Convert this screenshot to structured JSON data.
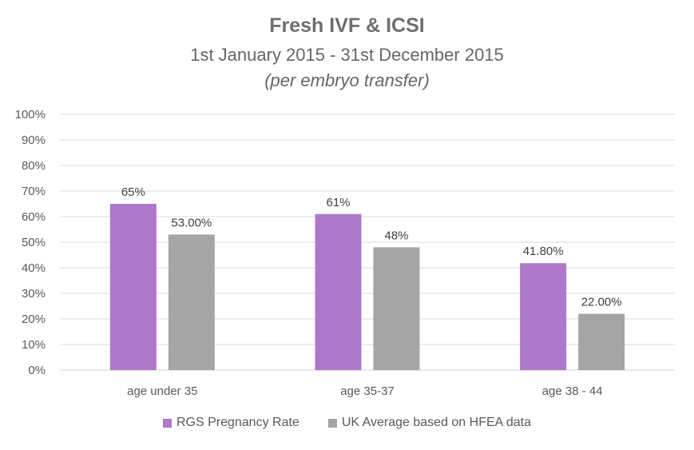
{
  "chart_data": {
    "type": "bar",
    "title": "Fresh IVF & ICSI",
    "subtitle": "1st January 2015 - 31st December 2015",
    "note": "(per embryo transfer)",
    "xlabel": "",
    "ylabel": "",
    "ylim": [
      0,
      100
    ],
    "yticks": [
      "0%",
      "10%",
      "20%",
      "30%",
      "40%",
      "50%",
      "60%",
      "70%",
      "80%",
      "90%",
      "100%"
    ],
    "grid": true,
    "legend_position": "bottom",
    "categories": [
      "age under 35",
      "age 35-37",
      "age 38 - 44"
    ],
    "series": [
      {
        "name": "RGS Pregnancy Rate",
        "color": "#ad78c9",
        "values": [
          65,
          61,
          41.8
        ],
        "labels": [
          "65%",
          "61%",
          "41.80%"
        ]
      },
      {
        "name": "UK Average based on HFEA data",
        "color": "#a5a5a5",
        "values": [
          53,
          48,
          22
        ],
        "labels": [
          "53.00%",
          "48%",
          "22.00%"
        ]
      }
    ]
  }
}
